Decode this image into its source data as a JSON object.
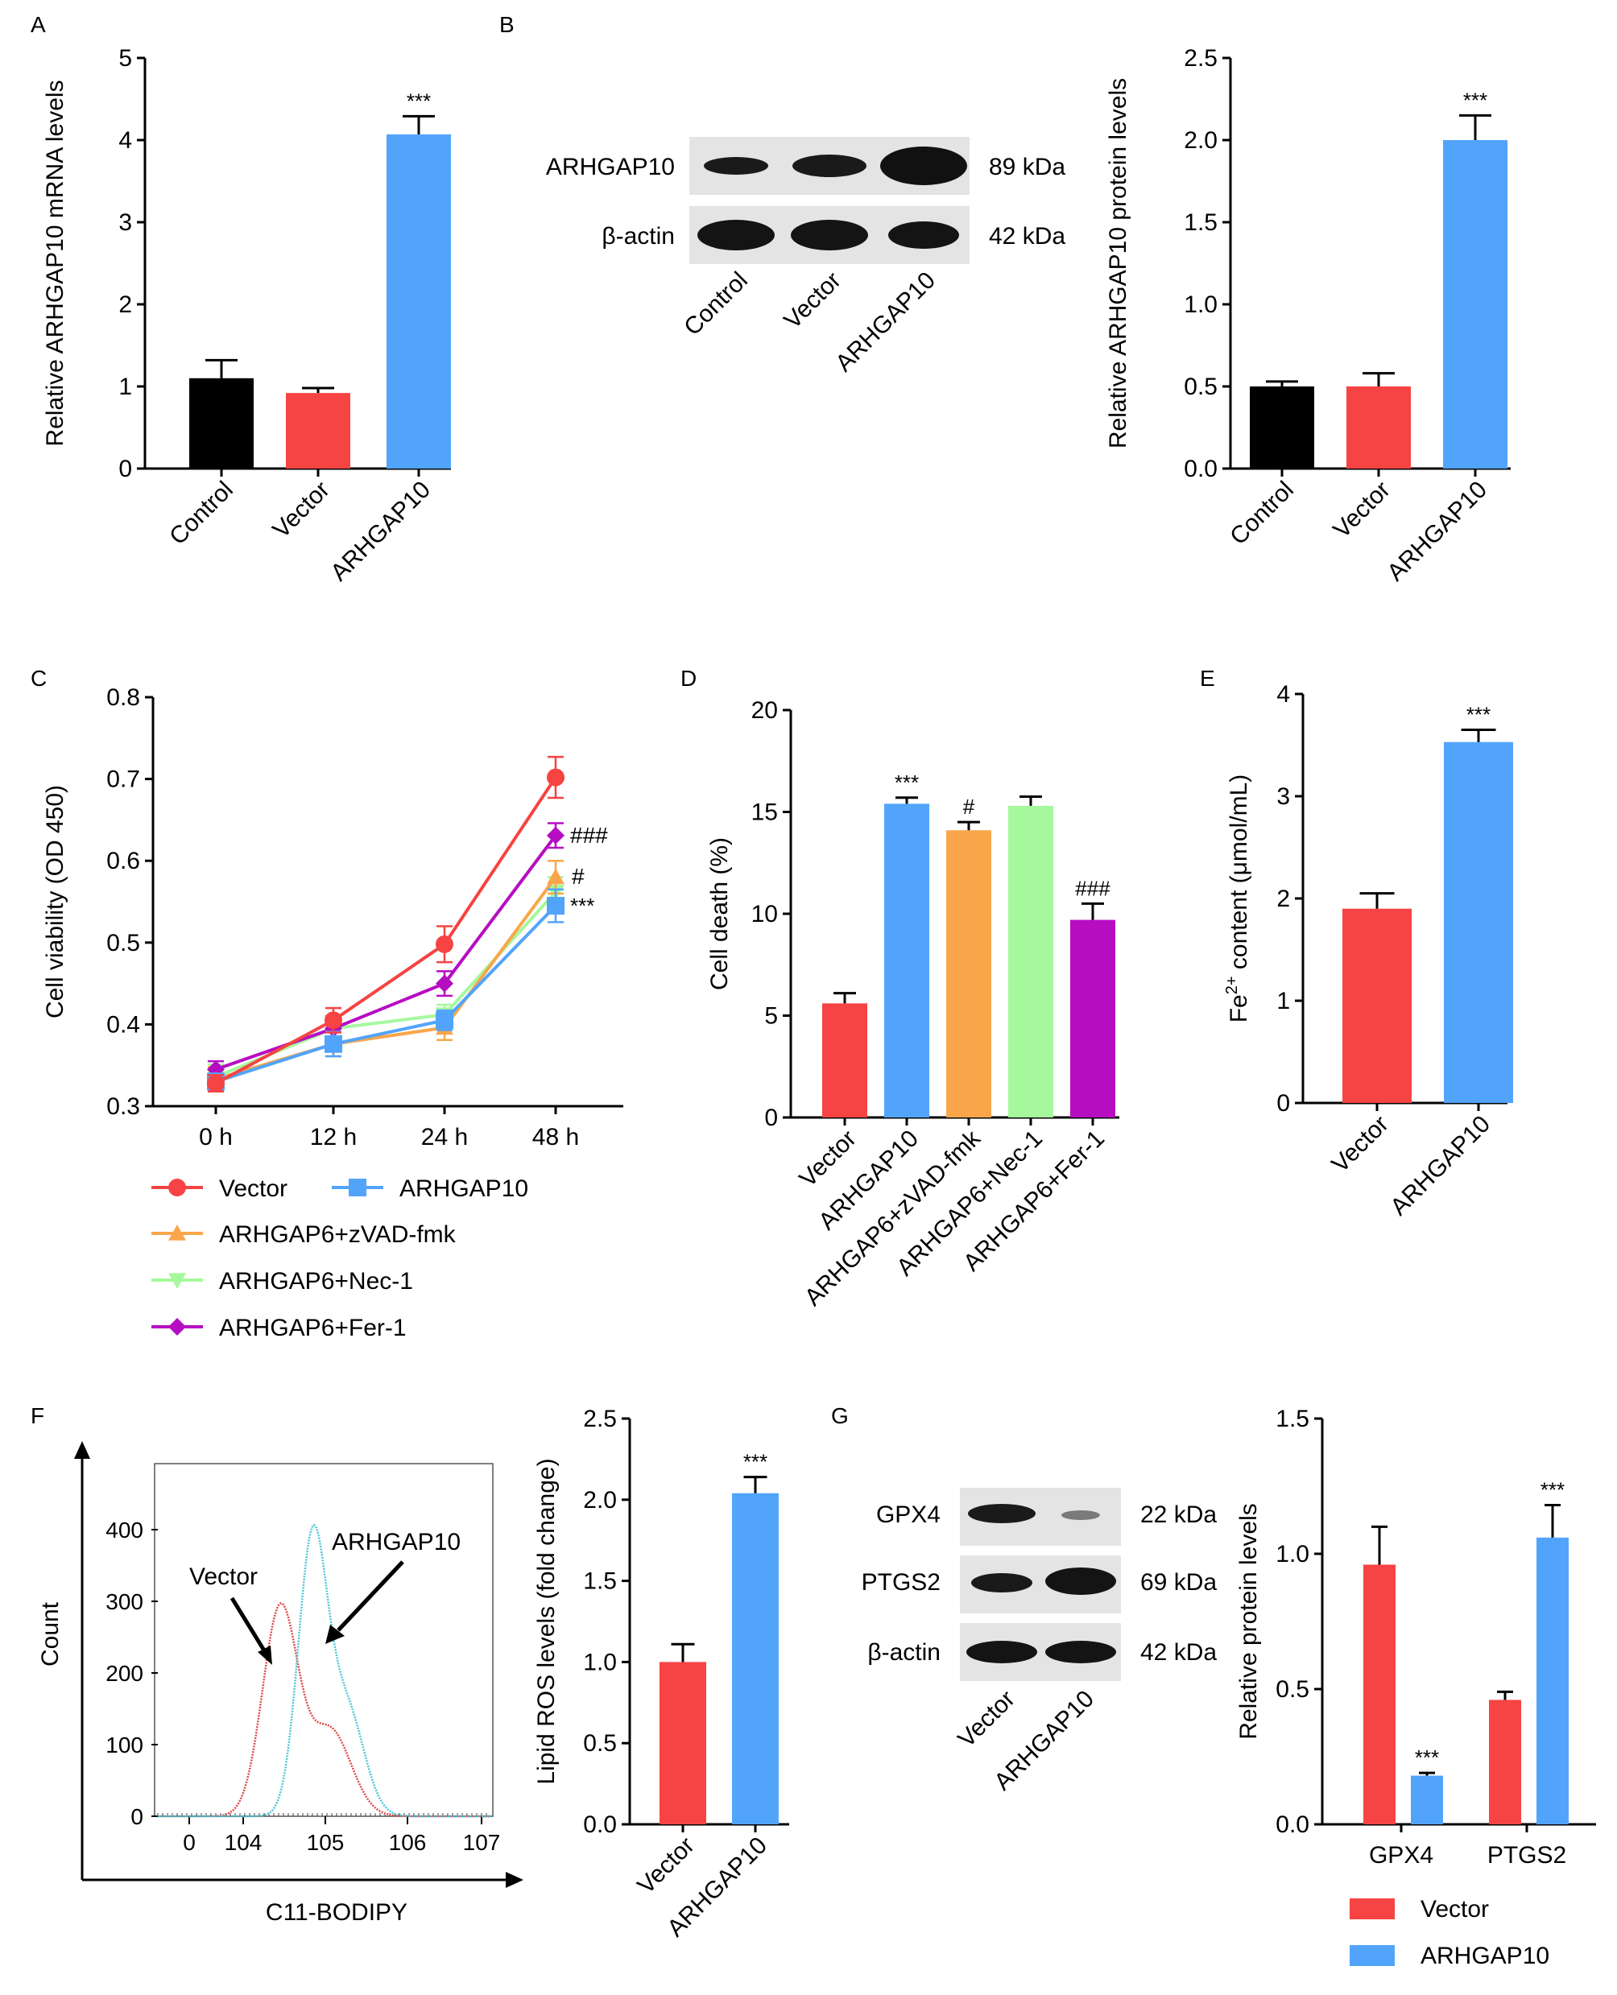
{
  "colors": {
    "black": "#000000",
    "red": "#f64343",
    "blue": "#52a4fb",
    "orange": "#f9a64a",
    "green": "#a6f89d",
    "purple": "#b60dc3",
    "cyan": "#4ec5d8"
  },
  "panels": {
    "A": "A",
    "B": "B",
    "C": "C",
    "D": "D",
    "E": "E",
    "F": "F",
    "G": "G"
  },
  "chart_data": [
    {
      "panel": "A",
      "type": "bar",
      "categories": [
        "Control",
        "Vector",
        "ARHGAP10"
      ],
      "values": [
        1.1,
        0.92,
        4.07
      ],
      "errors": [
        0.22,
        0.06,
        0.22
      ],
      "colors": [
        "#000000",
        "#f64343",
        "#52a4fb"
      ],
      "annotations": [
        "",
        "",
        "***"
      ],
      "ylabel": "Relative ARHGAP10 mRNA levels",
      "ylim": [
        0,
        5
      ],
      "yticks": [
        "0",
        "1",
        "2",
        "3",
        "4",
        "5"
      ]
    },
    {
      "panel": "B",
      "type": "bar",
      "categories": [
        "Control",
        "Vector",
        "ARHGAP10"
      ],
      "values": [
        0.5,
        0.5,
        2.0
      ],
      "errors": [
        0.03,
        0.08,
        0.15
      ],
      "colors": [
        "#000000",
        "#f64343",
        "#52a4fb"
      ],
      "annotations": [
        "",
        "",
        "***"
      ],
      "ylabel": "Relative ARHGAP10 protein levels",
      "ylim": [
        0,
        2.5
      ],
      "yticks": [
        "0.0",
        "0.5",
        "1.0",
        "1.5",
        "2.0",
        "2.5"
      ]
    },
    {
      "panel": "C",
      "type": "line",
      "categories": [
        "0 h",
        "12 h",
        "24 h",
        "48 h"
      ],
      "ylabel": "Cell viability (OD 450)",
      "ylim": [
        0.3,
        0.8
      ],
      "yticks": [
        "0.3",
        "0.4",
        "0.5",
        "0.6",
        "0.7",
        "0.8"
      ],
      "series": [
        {
          "name": "Vector",
          "marker": "circle",
          "color": "#f64343",
          "values": [
            0.328,
            0.405,
            0.498,
            0.702
          ],
          "errors": [
            0.01,
            0.015,
            0.022,
            0.025
          ]
        },
        {
          "name": "ARHGAP10",
          "marker": "square",
          "color": "#52a4fb",
          "values": [
            0.33,
            0.376,
            0.405,
            0.545
          ],
          "errors": [
            0.01,
            0.015,
            0.012,
            0.02
          ]
        },
        {
          "name": "ARHGAP6+zVAD-fmk",
          "marker": "triangle",
          "color": "#f9a64a",
          "values": [
            0.333,
            0.376,
            0.396,
            0.58
          ],
          "errors": [
            0.015,
            0.015,
            0.015,
            0.02
          ]
        },
        {
          "name": "ARHGAP6+Nec-1",
          "marker": "triangle-down",
          "color": "#a6f89d",
          "values": [
            0.336,
            0.395,
            0.412,
            0.562
          ],
          "errors": [
            0.015,
            0.015,
            0.012,
            0.018
          ]
        },
        {
          "name": "ARHGAP6+Fer-1",
          "marker": "diamond",
          "color": "#b60dc3",
          "values": [
            0.345,
            0.395,
            0.45,
            0.631
          ],
          "errors": [
            0.01,
            0.015,
            0.015,
            0.015
          ]
        }
      ],
      "annotations": [
        "###",
        "#",
        "***"
      ]
    },
    {
      "panel": "D",
      "type": "bar",
      "categories": [
        "Vector",
        "ARHGAP10",
        "ARHGAP6+zVAD-fmk",
        "ARHGAP6+Nec-1",
        "ARHGAP6+Fer-1"
      ],
      "values": [
        5.6,
        15.4,
        14.1,
        15.3,
        9.7
      ],
      "errors": [
        0.5,
        0.3,
        0.4,
        0.45,
        0.8
      ],
      "colors": [
        "#f64343",
        "#52a4fb",
        "#f9a64a",
        "#a6f89d",
        "#b60dc3"
      ],
      "annotations": [
        "",
        "***",
        "#",
        "",
        "###"
      ],
      "ylabel": "Cell death (%)",
      "ylim": [
        0,
        20
      ],
      "yticks": [
        "0",
        "5",
        "10",
        "15",
        "20"
      ]
    },
    {
      "panel": "E",
      "type": "bar",
      "categories": [
        "Vector",
        "ARHGAP10"
      ],
      "values": [
        1.9,
        3.53
      ],
      "errors": [
        0.15,
        0.12
      ],
      "colors": [
        "#f64343",
        "#52a4fb"
      ],
      "annotations": [
        "",
        "***"
      ],
      "ylabel_parts": [
        "Fe",
        "2+",
        " content (μmol/mL)"
      ],
      "ylim": [
        0,
        4
      ],
      "yticks": [
        "0",
        "1",
        "2",
        "3",
        "4"
      ]
    },
    {
      "panel": "F",
      "type": "bar",
      "categories": [
        "Vector",
        "ARHGAP10"
      ],
      "values": [
        1.0,
        2.04
      ],
      "errors": [
        0.11,
        0.1
      ],
      "colors": [
        "#f64343",
        "#52a4fb"
      ],
      "annotations": [
        "",
        "***"
      ],
      "ylabel": "Lipid ROS levels (fold change)",
      "ylim": [
        0,
        2.5
      ],
      "yticks": [
        "0.0",
        "0.5",
        "1.0",
        "1.5",
        "2.0",
        "2.5"
      ]
    },
    {
      "panel": "G",
      "type": "bar",
      "categories": [
        "GPX4",
        "PTGS2"
      ],
      "series": [
        {
          "name": "Vector",
          "color": "#f64343",
          "values": [
            0.96,
            0.46
          ],
          "errors": [
            0.14,
            0.03
          ]
        },
        {
          "name": "ARHGAP10",
          "color": "#52a4fb",
          "values": [
            0.18,
            1.06
          ],
          "errors": [
            0.01,
            0.12
          ]
        }
      ],
      "annotations": [
        "",
        "***",
        "",
        "***"
      ],
      "ylabel": "Relative protein levels",
      "ylim": [
        0,
        1.5
      ],
      "yticks": [
        "0.0",
        "0.5",
        "1.0",
        "1.5"
      ]
    }
  ],
  "blot_b": {
    "rows": [
      {
        "label": "ARHGAP10",
        "kda": "89 kDa"
      },
      {
        "label": "β-actin",
        "kda": "42 kDa"
      }
    ],
    "lanes": [
      "Control",
      "Vector",
      "ARHGAP10"
    ]
  },
  "blot_g": {
    "rows": [
      {
        "label": "GPX4",
        "kda": "22 kDa"
      },
      {
        "label": "PTGS2",
        "kda": "69 kDa"
      },
      {
        "label": "β-actin",
        "kda": "42 kDa"
      }
    ],
    "lanes": [
      "Vector",
      "ARHGAP10"
    ]
  },
  "flow": {
    "ylabel": "Count",
    "xlabel": "C11-BODIPY",
    "yticks": [
      "0",
      "100",
      "200",
      "300",
      "400"
    ],
    "xticks": [
      "0",
      "104",
      "105",
      "106",
      "107"
    ],
    "vector_label": "Vector",
    "arhgap10_label": "ARHGAP10"
  }
}
